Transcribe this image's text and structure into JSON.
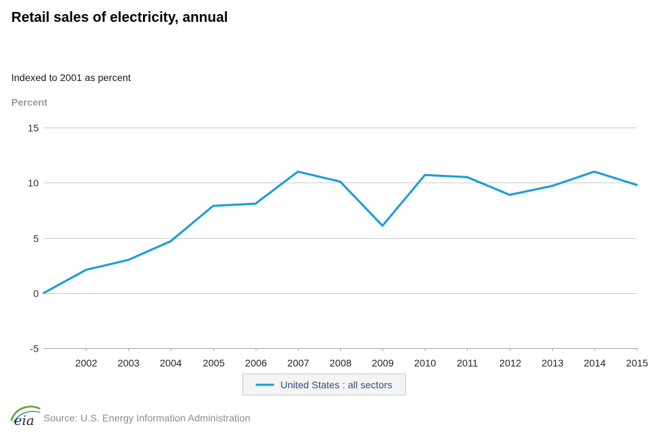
{
  "header": {
    "title": "Retail sales of electricity, annual",
    "subtitle": "Indexed to 2001 as percent"
  },
  "chart_data": {
    "type": "line",
    "title": "Retail sales of electricity, annual",
    "subtitle": "Indexed to 2001 as percent",
    "xlabel": "",
    "ylabel": "Percent",
    "x": [
      2001,
      2002,
      2003,
      2004,
      2005,
      2006,
      2007,
      2008,
      2009,
      2010,
      2011,
      2012,
      2013,
      2014,
      2015
    ],
    "series": [
      {
        "name": "United States : all sectors",
        "color": "#1a9dd9",
        "values": [
          0,
          2.1,
          3.0,
          4.7,
          7.9,
          8.1,
          11.0,
          10.1,
          6.1,
          10.7,
          10.5,
          8.9,
          9.7,
          11.0,
          9.8
        ]
      }
    ],
    "xlim": [
      2001,
      2015
    ],
    "ylim": [
      -5,
      15
    ],
    "yticks": [
      15,
      10,
      5,
      0,
      -5
    ],
    "xticks": [
      2002,
      2003,
      2004,
      2005,
      2006,
      2007,
      2008,
      2009,
      2010,
      2011,
      2012,
      2013,
      2014,
      2015
    ],
    "grid": true,
    "legend_position": "bottom",
    "colors": {
      "grid": "#cccccc",
      "axis": "#a6a6a6",
      "tick_label": "#222222",
      "legend_text": "#29527a"
    }
  },
  "footer": {
    "source": "Source: U.S. Energy Information Administration",
    "logo": "eia-logo"
  }
}
